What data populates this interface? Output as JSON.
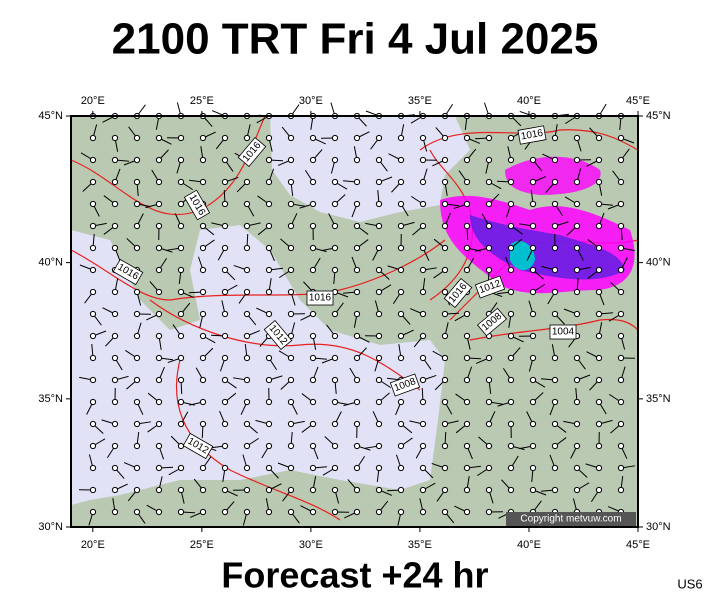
{
  "title": "2100 TRT Fri 4 Jul 2025",
  "footer": "Forecast +24 hr",
  "code": "US6",
  "copyright": "Copyright metvuw.com",
  "map": {
    "xlim": [
      19,
      45
    ],
    "ylim": [
      30,
      45
    ],
    "lon_ticks": [
      {
        "value": 20,
        "label": "20°E"
      },
      {
        "value": 25,
        "label": "25°E"
      },
      {
        "value": 30,
        "label": "30°E"
      },
      {
        "value": 35,
        "label": "35°E"
      },
      {
        "value": 40,
        "label": "40°E"
      },
      {
        "value": 45,
        "label": "45°E"
      }
    ],
    "lat_ticks": [
      {
        "value": 30,
        "label": "30°N"
      },
      {
        "value": 35,
        "label": "35°N"
      },
      {
        "value": 40,
        "label": "40°N"
      },
      {
        "value": 45,
        "label": "45°N"
      }
    ]
  },
  "isobar_labels": [
    "1016",
    "1016",
    "1016",
    "1016",
    "1012",
    "1008",
    "1012",
    "1016",
    "1016",
    "1012",
    "1008",
    "1004"
  ]
}
